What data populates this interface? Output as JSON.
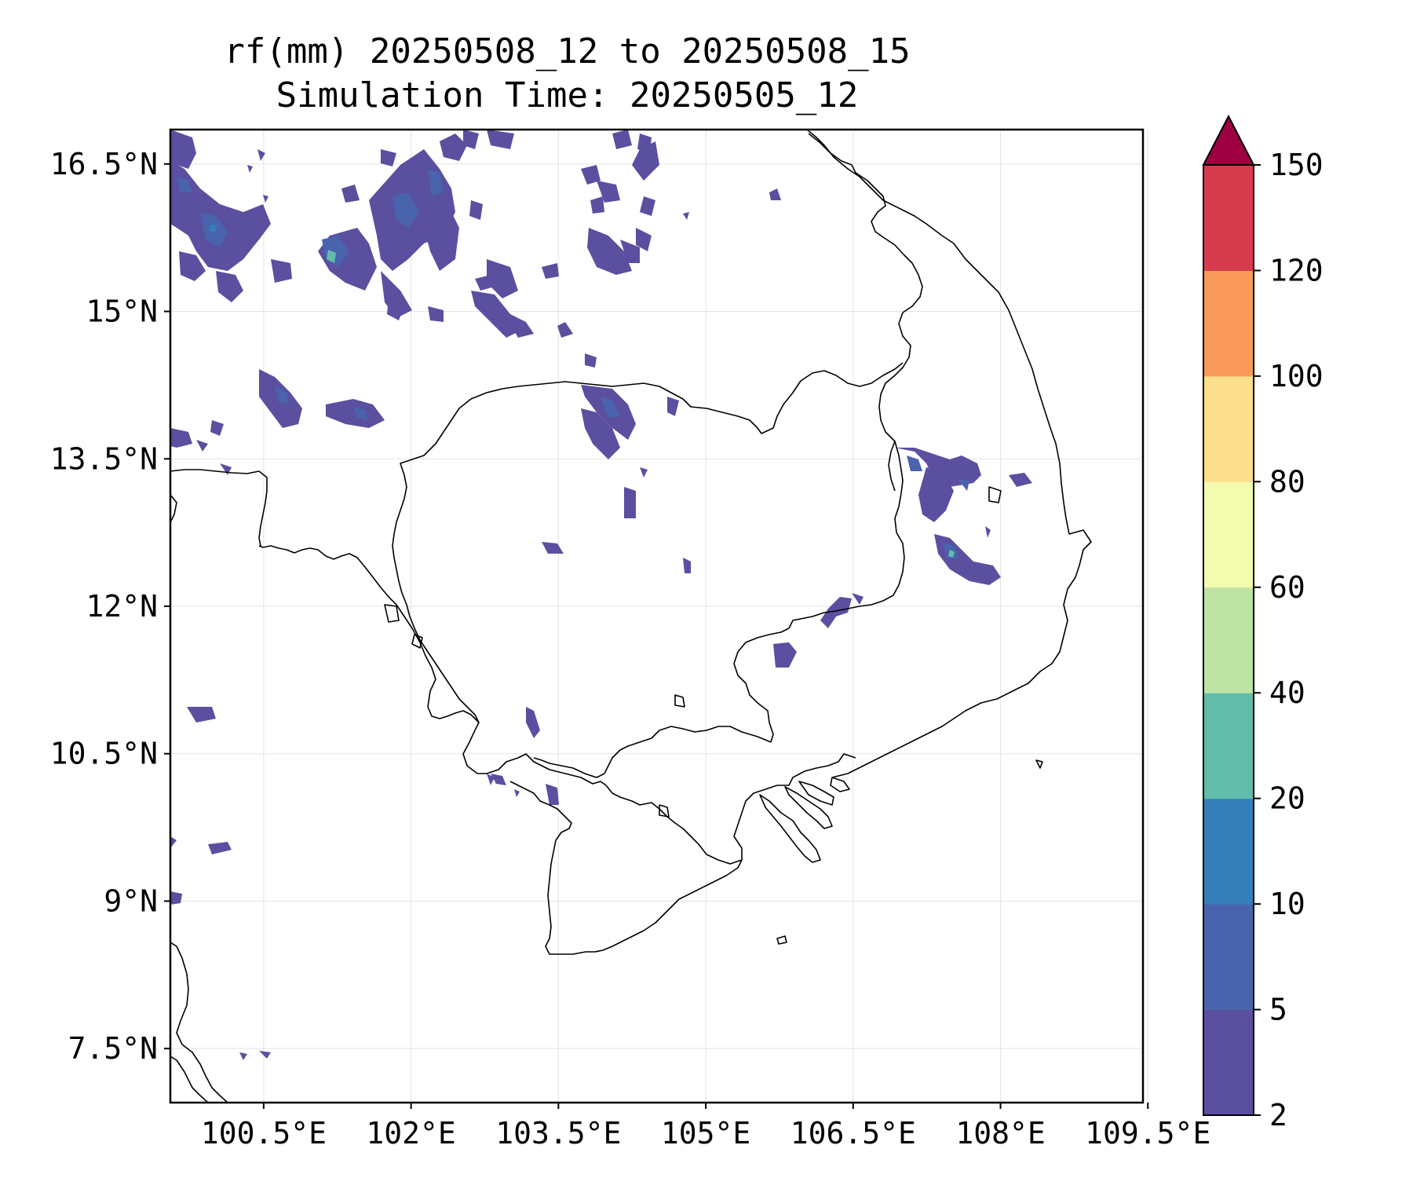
{
  "title": {
    "line1": "rf(mm) 20250508_12 to 20250508_15",
    "line2": "Simulation Time: 20250505_12"
  },
  "map": {
    "lon_range": [
      99.55,
      109.45
    ],
    "lat_range": [
      6.95,
      16.85
    ],
    "x_ticks": [
      "100.5°E",
      "102°E",
      "103.5°E",
      "105°E",
      "106.5°E",
      "108°E",
      "109.5°E"
    ],
    "y_ticks": [
      "16.5°N",
      "15°N",
      "13.5°N",
      "12°N",
      "10.5°N",
      "9°N",
      "7.5°N"
    ],
    "grid": true,
    "rain_colors": {
      "2-5": "#5b4fa0",
      "5-10": "#4a63ad"
    }
  },
  "colorbar": {
    "levels": [
      "2",
      "5",
      "10",
      "20",
      "40",
      "60",
      "80",
      "100",
      "120",
      "150"
    ],
    "colors": [
      "#5b4fa0",
      "#4a63ad",
      "#3580bb",
      "#62bcaa",
      "#bde3a2",
      "#f3fbaf",
      "#fbdf8d",
      "#f99a5b",
      "#d63c4e"
    ],
    "extend_color": "#9e0142",
    "extend": "max"
  }
}
